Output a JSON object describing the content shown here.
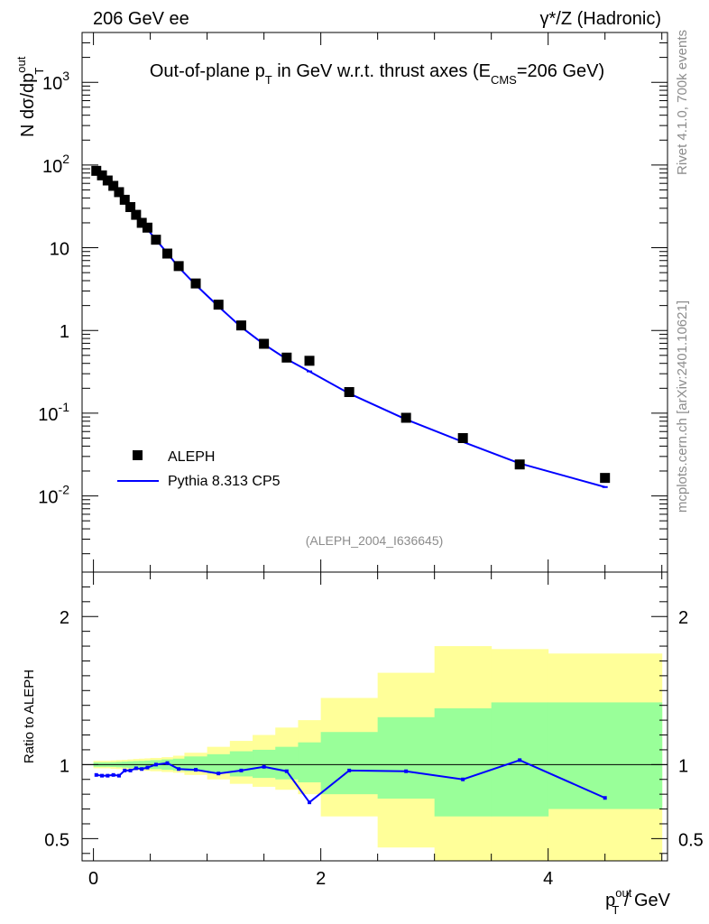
{
  "header": {
    "left": "206 GeV ee",
    "right_prefix": "γ*/Z (Hadronic)"
  },
  "side_labels": {
    "rivet": "Rivet 4.1.0,  700k events",
    "mcplots": "mcplots.cern.ch [arXiv:2401.10621]"
  },
  "colors": {
    "data": "#000000",
    "mc": "#0000ff",
    "band_outer": "#ffff99",
    "band_inner": "#99ff99"
  },
  "chart_data": [
    {
      "type": "scatter",
      "title": "Out-of-plane p_T in GeV w.r.t. thrust axes (E_CMS=206 GeV)",
      "title_parts": {
        "a": "Out-of-plane p",
        "sub_t": "T",
        "b": " in GeV w.r.t. thrust axes (E",
        "sub_cms": "CMS",
        "c": "=206 GeV)"
      },
      "ylabel": "N  dσ/dp_T^out",
      "ylabel_parts": {
        "a": "N  dσ/dp",
        "sup": "out",
        "sub": "T"
      },
      "yscale": "log",
      "ylim": [
        0.0012,
        4000
      ],
      "xlim": [
        -0.1,
        5.05
      ],
      "y_ticks": [
        "10^-2",
        "10^-1",
        "1",
        "10",
        "10^2",
        "10^3"
      ],
      "watermark": "(ALEPH_2004_I636645)",
      "legend": {
        "position": "bottom-left",
        "entries": [
          "ALEPH",
          "Pythia 8.313 CP5"
        ]
      },
      "series": [
        {
          "name": "ALEPH",
          "style": "markers",
          "x": [
            0.025,
            0.075,
            0.125,
            0.175,
            0.225,
            0.275,
            0.325,
            0.375,
            0.425,
            0.475,
            0.55,
            0.65,
            0.75,
            0.9,
            1.1,
            1.3,
            1.5,
            1.7,
            1.9,
            2.25,
            2.75,
            3.25,
            3.75,
            4.5
          ],
          "y": [
            85,
            75,
            65,
            56,
            47,
            38,
            31,
            25,
            20,
            17.5,
            12.5,
            8.5,
            6.0,
            3.7,
            2.05,
            1.15,
            0.69,
            0.47,
            0.43,
            0.18,
            0.088,
            0.05,
            0.024,
            0.0165
          ]
        },
        {
          "name": "Pythia 8.313 CP5",
          "style": "line",
          "x": [
            0.025,
            0.075,
            0.125,
            0.175,
            0.225,
            0.275,
            0.325,
            0.375,
            0.425,
            0.475,
            0.55,
            0.65,
            0.75,
            0.9,
            1.1,
            1.3,
            1.5,
            1.7,
            1.9,
            2.25,
            2.75,
            3.25,
            3.75,
            4.5
          ],
          "y": [
            79,
            70,
            60,
            52,
            44,
            35.5,
            29.5,
            24,
            19.2,
            16.7,
            12.5,
            8.6,
            5.8,
            3.55,
            1.95,
            1.1,
            0.68,
            0.45,
            0.32,
            0.173,
            0.084,
            0.045,
            0.0247,
            0.0128
          ]
        }
      ]
    },
    {
      "type": "line",
      "title": "",
      "ylabel": "Ratio to ALEPH",
      "xlabel": "p_T^out / GeV",
      "xlabel_parts": {
        "a": "p",
        "sup": "out",
        "sub": "T",
        "b": " / GeV"
      },
      "xlim": [
        -0.1,
        5.05
      ],
      "ylim": [
        0.35,
        2.3
      ],
      "x_ticks": [
        "0",
        "2",
        "4"
      ],
      "y_ticks": [
        "0.5",
        "1",
        "2"
      ],
      "reference_line": 1,
      "bands": {
        "edges": [
          0,
          0.05,
          0.1,
          0.15,
          0.2,
          0.25,
          0.3,
          0.35,
          0.4,
          0.45,
          0.5,
          0.6,
          0.7,
          0.8,
          1.0,
          1.2,
          1.4,
          1.6,
          1.8,
          2.0,
          2.5,
          3.0,
          3.5,
          4.0,
          5.0
        ],
        "outer_lo": [
          0.975,
          0.975,
          0.975,
          0.972,
          0.97,
          0.968,
          0.965,
          0.962,
          0.96,
          0.958,
          0.955,
          0.95,
          0.945,
          0.93,
          0.9,
          0.87,
          0.85,
          0.83,
          0.8,
          0.65,
          0.44,
          0.33,
          0.28,
          0.24
        ],
        "outer_hi": [
          1.025,
          1.025,
          1.025,
          1.028,
          1.03,
          1.032,
          1.035,
          1.038,
          1.04,
          1.042,
          1.045,
          1.05,
          1.06,
          1.08,
          1.12,
          1.16,
          1.2,
          1.25,
          1.3,
          1.45,
          1.62,
          1.8,
          1.78,
          1.75
        ],
        "inner_lo": [
          0.985,
          0.985,
          0.985,
          0.984,
          0.982,
          0.98,
          0.978,
          0.976,
          0.975,
          0.973,
          0.97,
          0.965,
          0.96,
          0.955,
          0.94,
          0.92,
          0.91,
          0.9,
          0.88,
          0.8,
          0.77,
          0.65,
          0.65,
          0.7
        ],
        "inner_hi": [
          1.015,
          1.015,
          1.015,
          1.016,
          1.018,
          1.02,
          1.022,
          1.024,
          1.025,
          1.027,
          1.03,
          1.035,
          1.04,
          1.055,
          1.07,
          1.09,
          1.1,
          1.12,
          1.15,
          1.22,
          1.32,
          1.38,
          1.42,
          1.42
        ]
      },
      "series": [
        {
          "name": "Pythia 8.313 CP5 / ALEPH",
          "x": [
            0.025,
            0.075,
            0.125,
            0.175,
            0.225,
            0.275,
            0.325,
            0.375,
            0.425,
            0.475,
            0.55,
            0.65,
            0.75,
            0.9,
            1.1,
            1.3,
            1.5,
            1.7,
            1.9,
            2.25,
            2.75,
            3.25,
            3.75,
            4.5
          ],
          "y": [
            0.93,
            0.925,
            0.925,
            0.93,
            0.925,
            0.96,
            0.96,
            0.975,
            0.97,
            0.98,
            1.0,
            1.01,
            0.97,
            0.965,
            0.94,
            0.96,
            0.985,
            0.955,
            0.745,
            0.96,
            0.955,
            0.9,
            1.03,
            0.775
          ]
        }
      ]
    }
  ]
}
